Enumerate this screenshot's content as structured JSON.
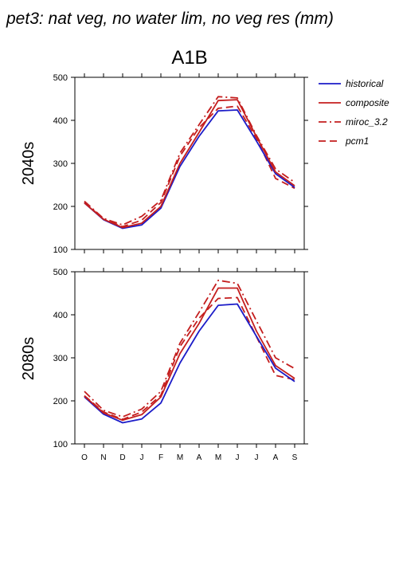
{
  "header": {
    "title": "pet3: nat veg, no water lim, no veg res (mm)",
    "scenario": "A1B"
  },
  "colors": {
    "historical": "#1c1cc8",
    "composite": "#c41e1e",
    "miroc": "#c41e1e",
    "pcm1": "#c41e1e",
    "axis": "#000000"
  },
  "chart_data": [
    {
      "type": "line",
      "label": "2040s",
      "categories": [
        "O",
        "N",
        "D",
        "J",
        "F",
        "M",
        "A",
        "M",
        "J",
        "J",
        "A",
        "S"
      ],
      "ylim": [
        100,
        500
      ],
      "yticks": [
        100,
        200,
        300,
        400,
        500
      ],
      "legend_position": "right",
      "series": [
        {
          "name": "historical",
          "values": [
            208,
            169,
            149,
            157,
            196,
            293,
            363,
            422,
            424,
            352,
            276,
            244
          ]
        },
        {
          "name": "composite",
          "values": [
            208,
            170,
            151,
            161,
            200,
            300,
            372,
            446,
            448,
            362,
            280,
            248
          ]
        },
        {
          "name": "miroc_3.2",
          "values": [
            212,
            172,
            157,
            177,
            214,
            324,
            390,
            455,
            452,
            365,
            287,
            256
          ]
        },
        {
          "name": "pcm1",
          "values": [
            210,
            170,
            153,
            168,
            209,
            317,
            383,
            428,
            433,
            358,
            265,
            242
          ]
        }
      ]
    },
    {
      "type": "line",
      "label": "2080s",
      "categories": [
        "O",
        "N",
        "D",
        "J",
        "F",
        "M",
        "A",
        "M",
        "J",
        "J",
        "A",
        "S"
      ],
      "ylim": [
        100,
        500
      ],
      "yticks": [
        100,
        200,
        300,
        400,
        500
      ],
      "legend_position": "right",
      "series": [
        {
          "name": "historical",
          "values": [
            209,
            169,
            149,
            158,
            195,
            288,
            362,
            422,
            425,
            350,
            276,
            245
          ]
        },
        {
          "name": "composite",
          "values": [
            211,
            172,
            155,
            168,
            209,
            310,
            380,
            462,
            462,
            362,
            282,
            252
          ]
        },
        {
          "name": "miroc_3.2",
          "values": [
            222,
            178,
            163,
            181,
            222,
            334,
            406,
            480,
            473,
            386,
            300,
            275
          ]
        },
        {
          "name": "pcm1",
          "values": [
            212,
            174,
            157,
            174,
            213,
            326,
            392,
            438,
            440,
            349,
            259,
            249
          ]
        }
      ]
    }
  ]
}
